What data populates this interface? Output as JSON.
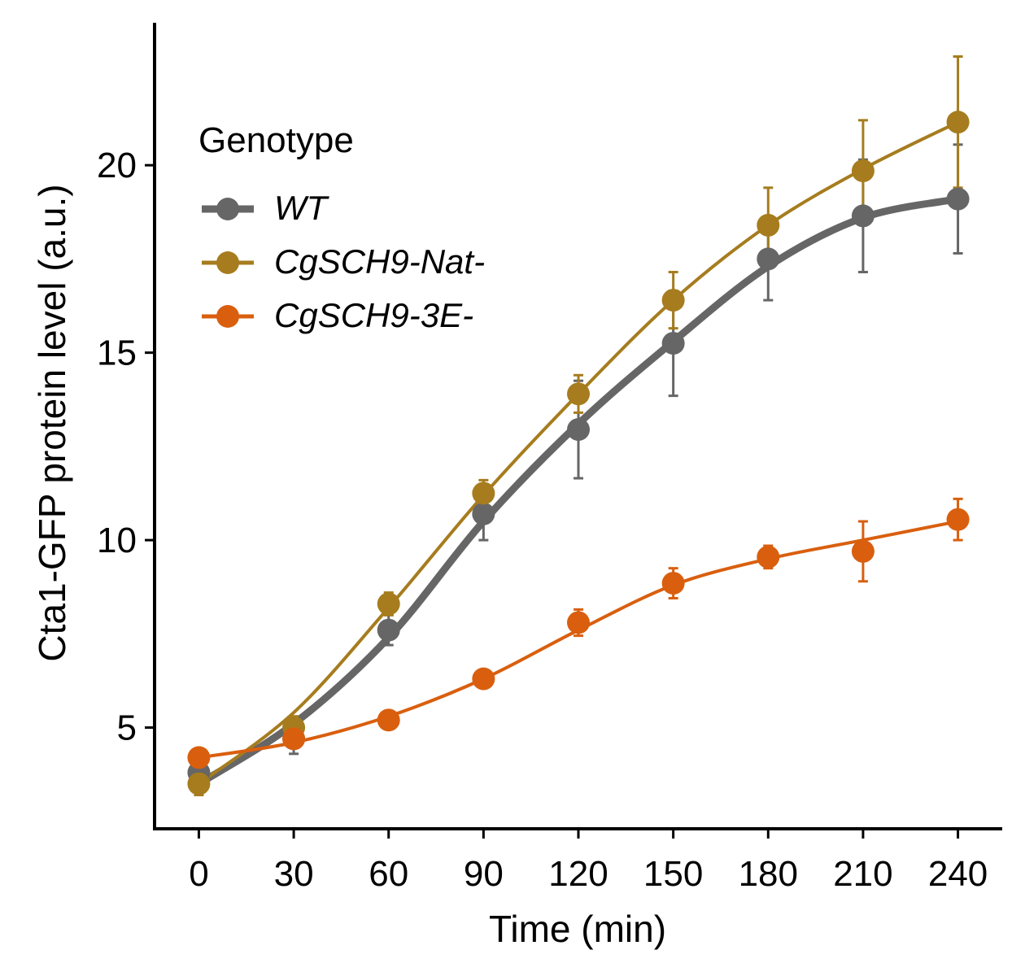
{
  "chart_data": {
    "type": "line",
    "xlabel": "Time (min)",
    "ylabel": "Cta1-GFP protein level (a.u.)",
    "x": [
      0,
      30,
      60,
      90,
      120,
      150,
      180,
      210,
      240
    ],
    "xticks": [
      "0",
      "30",
      "60",
      "90",
      "120",
      "150",
      "180",
      "210",
      "240"
    ],
    "yticks": [
      "5",
      "10",
      "15",
      "20"
    ],
    "xlim": [
      -14,
      254
    ],
    "ylim": [
      2.3,
      23.8
    ],
    "grid": false,
    "legend": {
      "title": "Genotype",
      "placement": "top-left",
      "entries": [
        "WT",
        "CgSCH9-Nat-",
        "CgSCH9-3E-"
      ]
    },
    "series": [
      {
        "name": "WT",
        "color": "#666666",
        "values": [
          3.8,
          4.7,
          7.6,
          10.7,
          12.95,
          15.25,
          17.5,
          18.65,
          19.1
        ],
        "error": [
          0.4,
          0.4,
          0.4,
          0.7,
          1.3,
          1.4,
          1.1,
          1.5,
          1.45
        ],
        "fit": [
          3.5,
          5.1,
          7.4,
          10.5,
          13.1,
          15.3,
          17.3,
          18.6,
          19.1
        ]
      },
      {
        "name": "CgSCH9-Nat-",
        "color": "#A67C1E",
        "values": [
          3.5,
          5.0,
          8.3,
          11.25,
          13.9,
          16.4,
          18.4,
          19.85,
          21.15
        ],
        "error": [
          0.3,
          0.3,
          0.3,
          0.35,
          0.5,
          0.75,
          1.0,
          1.35,
          1.75
        ],
        "fit": [
          3.5,
          5.4,
          8.2,
          11.2,
          13.9,
          16.4,
          18.4,
          19.9,
          21.15
        ]
      },
      {
        "name": "CgSCH9-3E-",
        "color": "#D95F0E",
        "values": [
          4.2,
          4.7,
          5.2,
          6.3,
          7.8,
          8.85,
          9.55,
          9.7,
          10.55
        ],
        "error": [
          0.15,
          0.15,
          0.15,
          0.2,
          0.35,
          0.4,
          0.3,
          0.8,
          0.55
        ],
        "fit": [
          4.2,
          4.6,
          5.3,
          6.3,
          7.6,
          8.8,
          9.5,
          10.0,
          10.5
        ]
      }
    ]
  }
}
